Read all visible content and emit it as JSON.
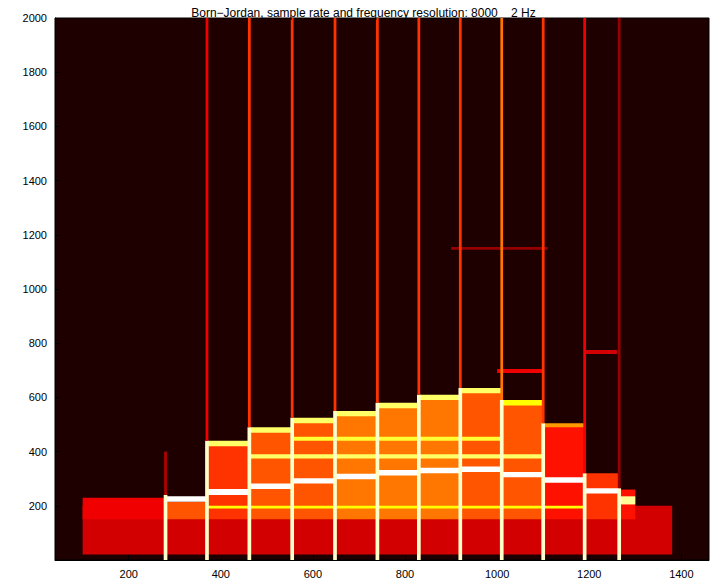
{
  "chart_data": {
    "type": "heatmap",
    "title": "Born−Jordan, sample rate and frequency resolution: 8000    2 Hz",
    "xlim": [
      40,
      1460
    ],
    "xticks": [
      200,
      400,
      600,
      800,
      1000,
      1200,
      1400
    ],
    "ylim": [
      0,
      2000
    ],
    "yticks": [
      200,
      400,
      600,
      800,
      1000,
      1200,
      1400,
      1600,
      1800,
      2000
    ],
    "grid": false,
    "zlim": [
      0,
      1
    ],
    "cells": [
      [
        100,
        1380,
        20,
        200,
        0.3
      ],
      [
        100,
        280,
        150,
        230,
        0.35
      ],
      [
        280,
        370,
        150,
        215,
        0.5
      ],
      [
        370,
        462,
        150,
        430,
        0.45
      ],
      [
        462,
        555,
        150,
        480,
        0.5
      ],
      [
        555,
        648,
        150,
        515,
        0.5
      ],
      [
        648,
        740,
        150,
        540,
        0.55
      ],
      [
        740,
        830,
        150,
        570,
        0.55
      ],
      [
        830,
        920,
        150,
        600,
        0.55
      ],
      [
        920,
        1010,
        150,
        625,
        0.5
      ],
      [
        1010,
        1100,
        150,
        580,
        0.5
      ],
      [
        1100,
        1190,
        150,
        500,
        0.4
      ],
      [
        1190,
        1265,
        150,
        320,
        0.45
      ],
      [
        1265,
        1300,
        150,
        260,
        0.4
      ],
      [
        462,
        1100,
        375,
        390,
        0.85
      ],
      [
        555,
        1010,
        440,
        455,
        0.8
      ],
      [
        370,
        1190,
        190,
        200,
        0.75
      ],
      [
        280,
        370,
        215,
        235,
        1
      ],
      [
        370,
        462,
        240,
        262,
        1
      ],
      [
        462,
        555,
        262,
        282,
        1
      ],
      [
        555,
        648,
        282,
        302,
        1
      ],
      [
        648,
        740,
        298,
        318,
        1
      ],
      [
        740,
        830,
        312,
        332,
        1
      ],
      [
        830,
        920,
        320,
        340,
        1
      ],
      [
        920,
        1010,
        325,
        345,
        1
      ],
      [
        1010,
        1100,
        305,
        325,
        1
      ],
      [
        1100,
        1190,
        285,
        305,
        1
      ],
      [
        1190,
        1265,
        245,
        265,
        1
      ],
      [
        1265,
        1300,
        205,
        235,
        0.9
      ],
      [
        370,
        462,
        420,
        440,
        0.85
      ],
      [
        462,
        555,
        470,
        490,
        0.85
      ],
      [
        555,
        648,
        505,
        525,
        0.85
      ],
      [
        648,
        740,
        530,
        550,
        0.85
      ],
      [
        740,
        830,
        560,
        580,
        0.85
      ],
      [
        830,
        920,
        590,
        610,
        0.85
      ],
      [
        920,
        1010,
        615,
        635,
        0.85
      ],
      [
        1010,
        1100,
        570,
        590,
        0.75
      ],
      [
        1100,
        1190,
        490,
        505,
        0.6
      ],
      [
        1000,
        1100,
        690,
        705,
        0.35
      ],
      [
        1190,
        1260,
        760,
        775,
        0.3
      ],
      [
        900,
        1110,
        1145,
        1155,
        0.2
      ],
      [
        276,
        284,
        0,
        240,
        0.95
      ],
      [
        277,
        283,
        240,
        400,
        0.25
      ],
      [
        366,
        374,
        0,
        440,
        0.95
      ],
      [
        367,
        373,
        440,
        2000,
        0.35
      ],
      [
        458,
        466,
        0,
        490,
        0.95
      ],
      [
        459,
        465,
        490,
        2000,
        0.45
      ],
      [
        551,
        559,
        0,
        525,
        0.95
      ],
      [
        552,
        558,
        525,
        2000,
        0.45
      ],
      [
        644,
        652,
        0,
        550,
        0.95
      ],
      [
        645,
        651,
        550,
        2000,
        0.45
      ],
      [
        736,
        744,
        0,
        580,
        0.95
      ],
      [
        737,
        743,
        580,
        2000,
        0.45
      ],
      [
        826,
        834,
        0,
        610,
        0.95
      ],
      [
        827,
        833,
        610,
        2000,
        0.45
      ],
      [
        916,
        924,
        0,
        635,
        0.95
      ],
      [
        917,
        923,
        635,
        2000,
        0.45
      ],
      [
        1006,
        1014,
        0,
        590,
        0.95
      ],
      [
        1007,
        1013,
        590,
        2000,
        0.55
      ],
      [
        1096,
        1104,
        0,
        505,
        0.95
      ],
      [
        1097,
        1103,
        505,
        2000,
        0.45
      ],
      [
        1186,
        1194,
        0,
        320,
        0.95
      ],
      [
        1187,
        1193,
        320,
        2000,
        0.35
      ],
      [
        1261,
        1269,
        0,
        265,
        0.95
      ],
      [
        1262,
        1268,
        265,
        2000,
        0.2
      ]
    ]
  }
}
